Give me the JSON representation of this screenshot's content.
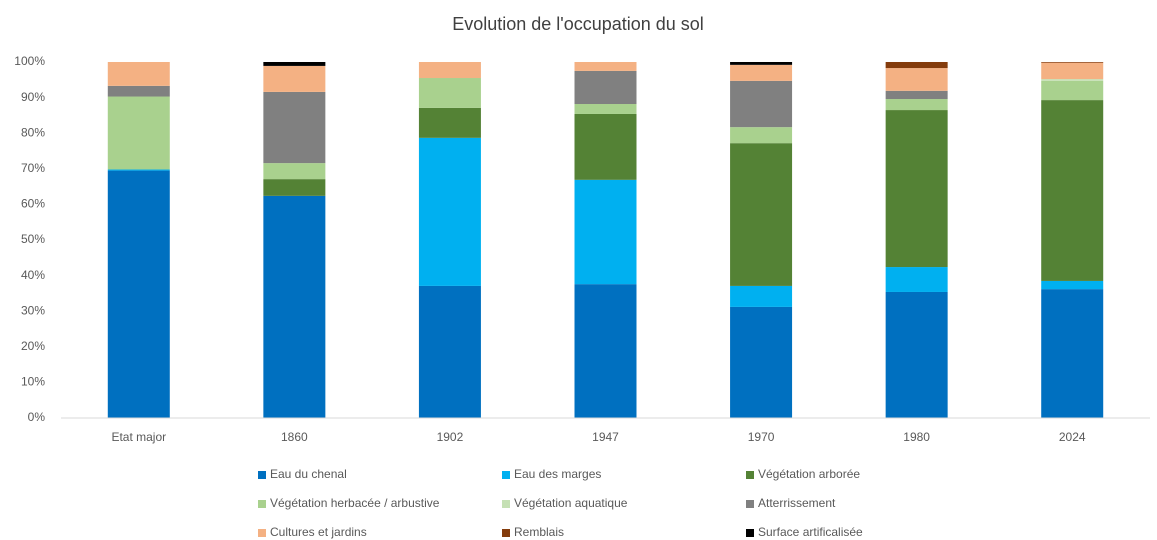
{
  "chart_data": {
    "type": "stacked_bar",
    "title": "Evolution de l'occupation du sol",
    "categories": [
      "Etat major",
      "1860",
      "1902",
      "1947",
      "1970",
      "1980",
      "2024"
    ],
    "series": [
      {
        "name": "Eau du chenal",
        "color": "#0070c0",
        "values": [
          69.5,
          62.4,
          37.1,
          37.6,
          31.2,
          35.4,
          36.2
        ]
      },
      {
        "name": "Eau des marges",
        "color": "#00b0f0",
        "values": [
          0.3,
          0,
          41.6,
          29.3,
          5.9,
          7,
          2.3
        ]
      },
      {
        "name": "Végétation arborée",
        "color": "#548235",
        "values": [
          0,
          4.7,
          8.4,
          18.5,
          40.1,
          44.1,
          50.8
        ]
      },
      {
        "name": "Végétation herbacée / arbustive",
        "color": "#a9d18e",
        "values": [
          20.5,
          4.5,
          8.4,
          2.8,
          4.5,
          3.1,
          5.4
        ]
      },
      {
        "name": "Végétation aquatique",
        "color": "#c5e0b4",
        "values": [
          0,
          0,
          0,
          0,
          0,
          0,
          0.5
        ]
      },
      {
        "name": "Atterrissement",
        "color": "#808080",
        "values": [
          3,
          20,
          0,
          9.3,
          13,
          2.3,
          0
        ]
      },
      {
        "name": "Cultures et jardins",
        "color": "#f4b183",
        "values": [
          6.7,
          7.3,
          4.5,
          2.5,
          4.5,
          6.4,
          4.6
        ]
      },
      {
        "name": "Remblais",
        "color": "#843c0c",
        "values": [
          0,
          0,
          0,
          0,
          0,
          1.7,
          0.2
        ]
      },
      {
        "name": "Surface artificalisée",
        "color": "#000000",
        "values": [
          0,
          1.1,
          0,
          0,
          0.8,
          0,
          0
        ]
      }
    ],
    "ylim": [
      0,
      100
    ],
    "yticks": [
      {
        "value": 0,
        "label": "0%"
      },
      {
        "value": 10,
        "label": "10%"
      },
      {
        "value": 20,
        "label": "20%"
      },
      {
        "value": 30,
        "label": "30%"
      },
      {
        "value": 40,
        "label": "40%"
      },
      {
        "value": 50,
        "label": "50%"
      },
      {
        "value": 60,
        "label": "60%"
      },
      {
        "value": 70,
        "label": "70%"
      },
      {
        "value": 80,
        "label": "80%"
      },
      {
        "value": 90,
        "label": "90%"
      },
      {
        "value": 100,
        "label": "100%"
      }
    ],
    "legend": "bottom"
  }
}
